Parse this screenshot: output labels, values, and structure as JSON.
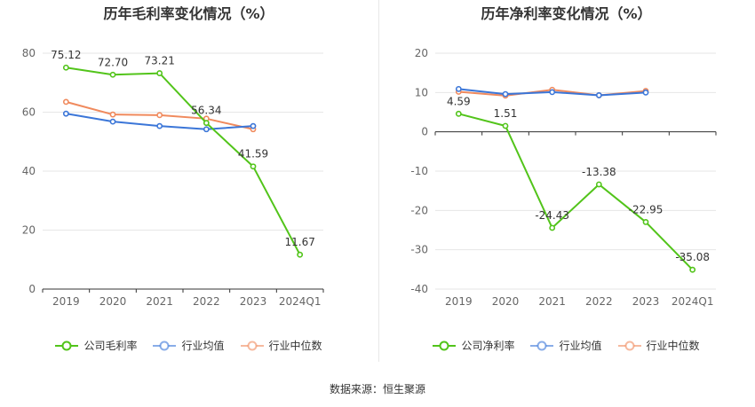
{
  "source": "数据来源：恒生聚源",
  "chart_data": [
    {
      "type": "line",
      "title": "历年毛利率变化情况（%）",
      "categories": [
        "2019",
        "2020",
        "2021",
        "2022",
        "2023",
        "2024Q1"
      ],
      "ylim": [
        0,
        80
      ],
      "yticks": [
        0,
        20,
        40,
        60,
        80
      ],
      "grid": true,
      "legend_position": "bottom",
      "series": [
        {
          "name": "公司毛利率",
          "color": "#52c41a",
          "values": [
            75.12,
            72.7,
            73.21,
            56.34,
            41.59,
            11.67
          ],
          "labels": [
            "75.12",
            "72.70",
            "73.21",
            "56.34",
            "41.59",
            "11.67"
          ]
        },
        {
          "name": "行业均值",
          "color": "#3b76d8",
          "values": [
            59.5,
            56.8,
            55.3,
            54.2,
            55.3,
            null
          ]
        },
        {
          "name": "行业中位数",
          "color": "#f08a5d",
          "values": [
            63.5,
            59.2,
            59.0,
            57.8,
            54.2,
            null
          ]
        }
      ]
    },
    {
      "type": "line",
      "title": "历年净利率变化情况（%）",
      "categories": [
        "2019",
        "2020",
        "2021",
        "2022",
        "2023",
        "2024Q1"
      ],
      "ylim": [
        -40,
        20
      ],
      "yticks": [
        -40,
        -30,
        -20,
        -10,
        0,
        10,
        20
      ],
      "grid": true,
      "legend_position": "bottom",
      "series": [
        {
          "name": "公司净利率",
          "color": "#52c41a",
          "values": [
            4.59,
            1.51,
            -24.43,
            -13.38,
            -22.95,
            -35.08
          ],
          "labels": [
            "4.59",
            "1.51",
            "-24.43",
            "-13.38",
            "-22.95",
            "-35.08"
          ]
        },
        {
          "name": "行业均值",
          "color": "#3b76d8",
          "values": [
            10.9,
            9.6,
            10.1,
            9.3,
            10.0,
            null
          ]
        },
        {
          "name": "行业中位数",
          "color": "#f08a5d",
          "values": [
            10.2,
            9.2,
            10.7,
            9.3,
            10.4,
            null
          ]
        }
      ]
    }
  ]
}
